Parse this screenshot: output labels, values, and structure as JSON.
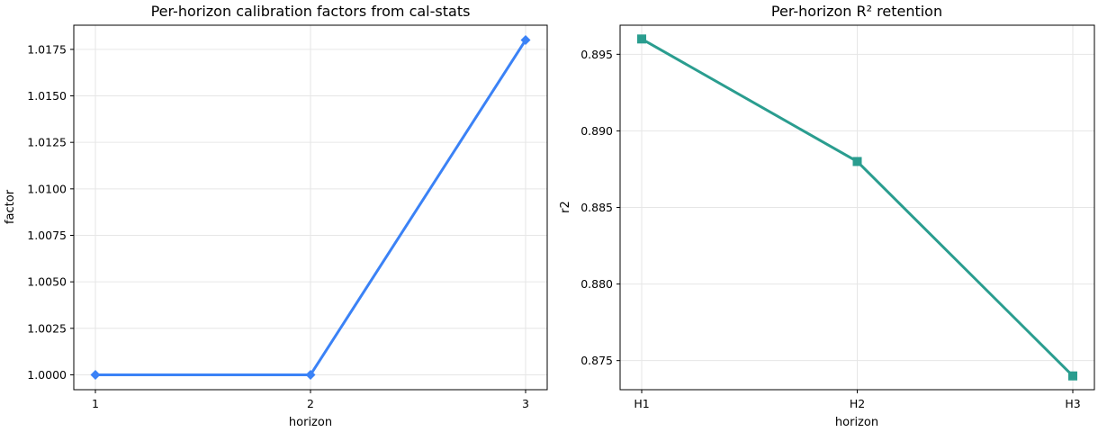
{
  "chart_data": [
    {
      "type": "line",
      "title": "Per-horizon calibration factors from cal-stats",
      "xlabel": "horizon",
      "ylabel": "factor",
      "categories": [
        "1",
        "2",
        "3"
      ],
      "yticks": [
        "1.0000",
        "1.0025",
        "1.0050",
        "1.0075",
        "1.0100",
        "1.0125",
        "1.0150",
        "1.0175"
      ],
      "ylim": [
        0.9992,
        1.0188
      ],
      "grid": true,
      "marker": "diamond",
      "color": "#3b82f6",
      "series": [
        {
          "values": [
            1.0,
            1.0,
            1.018
          ]
        }
      ]
    },
    {
      "type": "line",
      "title": "Per-horizon R² retention",
      "xlabel": "horizon",
      "ylabel": "r2",
      "categories": [
        "H1",
        "H2",
        "H3"
      ],
      "yticks": [
        "0.875",
        "0.880",
        "0.885",
        "0.890",
        "0.895"
      ],
      "ylim": [
        0.8731,
        0.8969
      ],
      "grid": true,
      "marker": "square",
      "color": "#2a9d8f",
      "series": [
        {
          "values": [
            0.896,
            0.888,
            0.874
          ]
        }
      ]
    }
  ]
}
